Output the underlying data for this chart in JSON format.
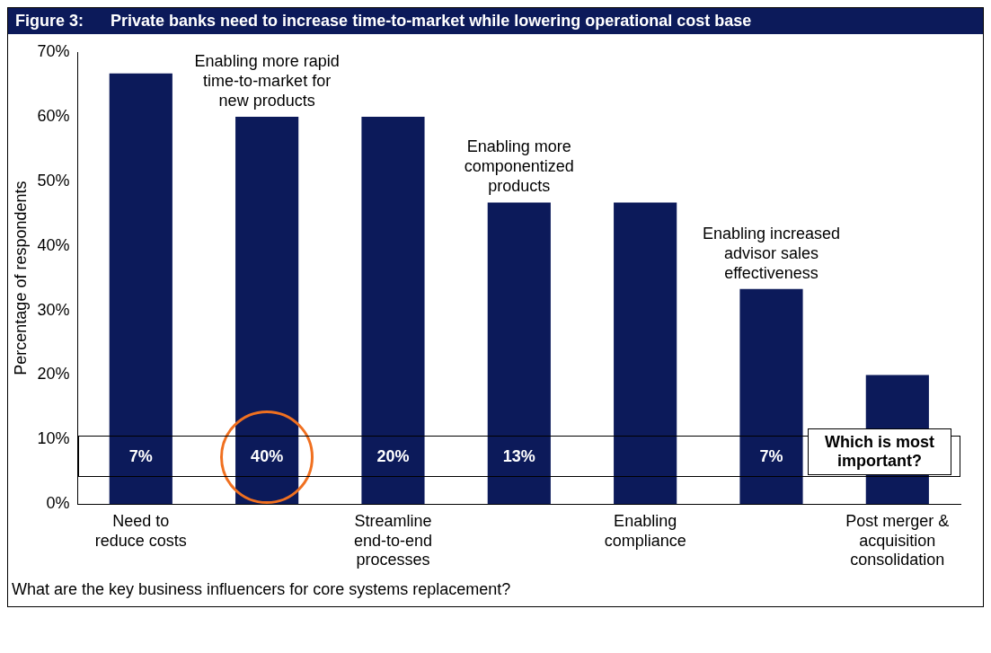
{
  "chart_data": {
    "type": "bar",
    "title": "Figure 3:      Private banks need to increase time-to-market while lowering operational cost base",
    "ylabel": "Percentage of respondents",
    "categories": [
      "Need to reduce costs",
      "Enabling more rapid time-to-market for new products",
      "Streamline end-to-end processes",
      "Enabling more componentized products",
      "Enabling compliance",
      "Enabling increased advisor sales effectiveness",
      "Post merger & acquisition consolidation"
    ],
    "values": [
      66.7,
      60,
      60,
      46.7,
      46.7,
      33.3,
      20
    ],
    "color": "#0c1a5a",
    "ylim": [
      0,
      70
    ],
    "yticks": [
      {
        "value": 0,
        "label": "0%"
      },
      {
        "value": 10,
        "label": "10%"
      },
      {
        "value": 20,
        "label": "20%"
      },
      {
        "value": 30,
        "label": "30%"
      },
      {
        "value": 40,
        "label": "40%"
      },
      {
        "value": 50,
        "label": "50%"
      },
      {
        "value": 60,
        "label": "60%"
      },
      {
        "value": 70,
        "label": "70%"
      }
    ],
    "grid": false,
    "annotations": [
      "7%",
      "40%",
      "20%",
      "13%",
      "7%",
      "Which is most important?",
      "What are the key business influencers for core systems replacement?"
    ]
  }
}
